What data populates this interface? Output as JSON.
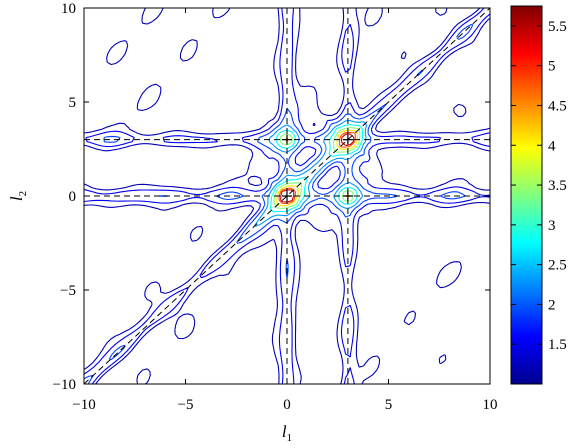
{
  "chart_data": {
    "type": "contour",
    "title": "",
    "xlabel": "l",
    "xlabel_sub": "1",
    "ylabel": "l",
    "ylabel_sub": "2",
    "xlim": [
      -10,
      10
    ],
    "ylim": [
      -10,
      10
    ],
    "xticks": [
      -10,
      -5,
      0,
      5,
      10
    ],
    "yticks": [
      -10,
      -5,
      0,
      5,
      10
    ],
    "xtick_labels": [
      "−10",
      "−5",
      "0",
      "5",
      "10"
    ],
    "ytick_labels": [
      "−10",
      "−5",
      "0",
      "5",
      "10"
    ],
    "grid": false,
    "colormap": "jet",
    "colorbar": {
      "range": [
        1.0,
        5.75
      ],
      "ticks": [
        1.5,
        2,
        2.5,
        3,
        3.5,
        4,
        4.5,
        5,
        5.5
      ],
      "tick_labels": [
        "1.5",
        "2",
        "2.5",
        "3",
        "3.5",
        "4",
        "4.5",
        "5",
        "5.5"
      ]
    },
    "peaks": [
      {
        "l1": 0,
        "l2": 0,
        "value": 5.7
      },
      {
        "l1": 3,
        "l2": 3,
        "value": 5.7
      },
      {
        "l1": 0,
        "l2": 3,
        "value": 3.2
      },
      {
        "l1": 3,
        "l2": 0,
        "value": 3.2
      }
    ],
    "dashed_lines": [
      {
        "orientation": "vertical",
        "value": 0
      },
      {
        "orientation": "vertical",
        "value": 3
      },
      {
        "orientation": "horizontal",
        "value": 0
      },
      {
        "orientation": "horizontal",
        "value": 3
      },
      {
        "orientation": "diagonal",
        "from": [
          -10,
          -10
        ],
        "to": [
          10,
          10
        ]
      }
    ]
  }
}
